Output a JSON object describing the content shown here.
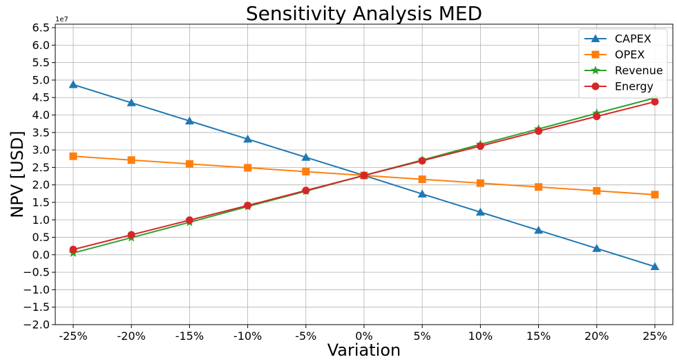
{
  "chart_data": {
    "type": "line",
    "title": "Sensitivity Analysis MED",
    "xlabel": "Variation",
    "ylabel": "NPV [USD]",
    "y_offset_label": "1e7",
    "categories": [
      "-25%",
      "-20%",
      "-15%",
      "-10%",
      "-5%",
      "0%",
      "5%",
      "10%",
      "15%",
      "20%",
      "25%"
    ],
    "ylim": [
      -2.0,
      6.6
    ],
    "yticks": [
      -2.0,
      -1.5,
      -1.0,
      -0.5,
      0.0,
      0.5,
      1.0,
      1.5,
      2.0,
      2.5,
      3.0,
      3.5,
      4.0,
      4.5,
      5.0,
      5.5,
      6.0,
      6.5
    ],
    "ytick_labels": [
      "−2.0",
      "−1.5",
      "−1.0",
      "−0.5",
      "0.0",
      "0.5",
      "1.0",
      "1.5",
      "2.0",
      "2.5",
      "3.0",
      "3.5",
      "4.0",
      "4.5",
      "5.0",
      "5.5",
      "6.0",
      "6.5"
    ],
    "grid": true,
    "legend_position": "top-right",
    "series": [
      {
        "name": "CAPEX",
        "color": "#1f77b4",
        "marker": "triangle",
        "values": [
          4.87,
          4.35,
          3.83,
          3.31,
          2.79,
          2.27,
          1.74,
          1.22,
          0.7,
          0.18,
          -0.34
        ]
      },
      {
        "name": "OPEX",
        "color": "#ff7f0e",
        "marker": "square",
        "values": [
          2.82,
          2.71,
          2.6,
          2.49,
          2.38,
          2.27,
          2.16,
          2.05,
          1.94,
          1.83,
          1.72
        ]
      },
      {
        "name": "Revenue",
        "color": "#2ca02c",
        "marker": "star",
        "values": [
          0.05,
          0.49,
          0.93,
          1.38,
          1.82,
          2.27,
          2.71,
          3.16,
          3.6,
          4.05,
          4.49
        ]
      },
      {
        "name": "Energy",
        "color": "#d62728",
        "marker": "circle",
        "values": [
          0.15,
          0.57,
          0.99,
          1.41,
          1.84,
          2.27,
          2.69,
          3.11,
          3.54,
          3.96,
          4.38
        ]
      }
    ]
  }
}
